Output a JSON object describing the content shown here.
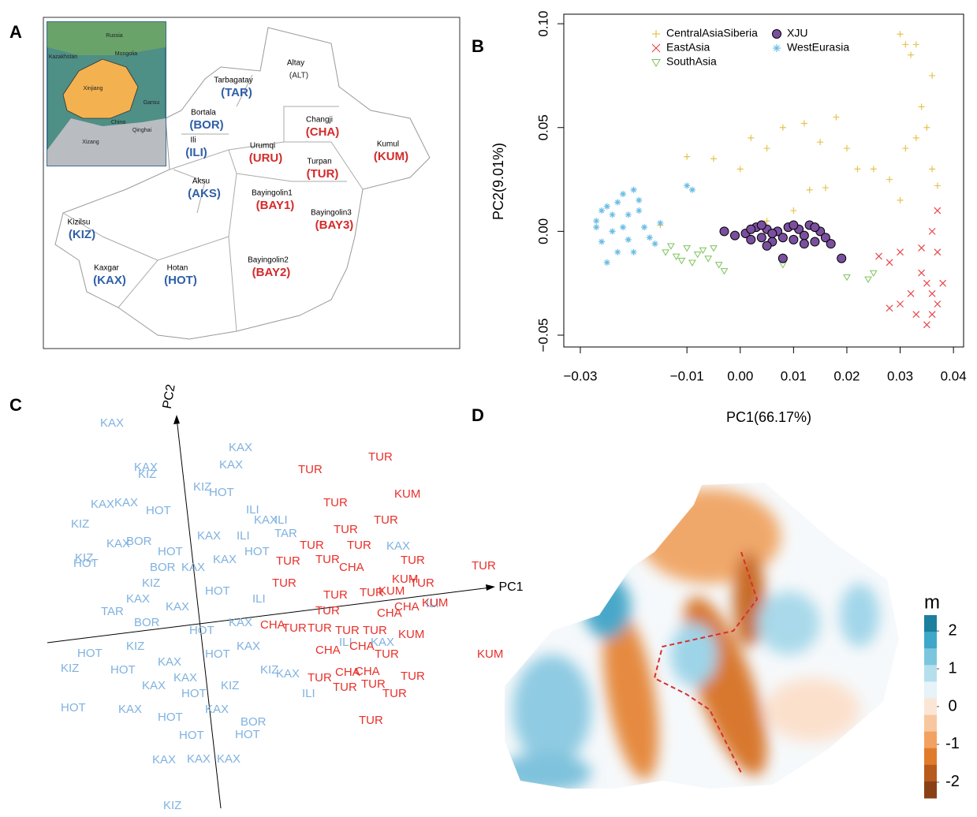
{
  "panel_labels": [
    "A",
    "B",
    "C",
    "D"
  ],
  "map": {
    "regions": [
      {
        "name": "Altay",
        "code": "(ALT)",
        "color": "#222222"
      },
      {
        "name": "Tarbagatay",
        "code": "(TAR)",
        "color": "#2e5fa8"
      },
      {
        "name": "Bortala",
        "code": "(BOR)",
        "color": "#2e5fa8"
      },
      {
        "name": "Ili",
        "code": "(ILI)",
        "color": "#2e5fa8"
      },
      {
        "name": "Changji",
        "code": "(CHA)",
        "color": "#d42a2a"
      },
      {
        "name": "Urumqi",
        "code": "(URU)",
        "color": "#d42a2a"
      },
      {
        "name": "Turpan",
        "code": "(TUR)",
        "color": "#d42a2a"
      },
      {
        "name": "Kumul",
        "code": "(KUM)",
        "color": "#d42a2a"
      },
      {
        "name": "Aksu",
        "code": "(AKS)",
        "color": "#2e5fa8"
      },
      {
        "name": "Bayingolin1",
        "code": "(BAY1)",
        "color": "#d42a2a"
      },
      {
        "name": "Bayingolin3",
        "code": "(BAY3)",
        "color": "#d42a2a"
      },
      {
        "name": "Kizilsu",
        "code": "(KIZ)",
        "color": "#2e5fa8"
      },
      {
        "name": "Kaxgar",
        "code": "(KAX)",
        "color": "#2e5fa8"
      },
      {
        "name": "Hotan",
        "code": "(HOT)",
        "color": "#2e5fa8"
      },
      {
        "name": "Bayingolin2",
        "code": "(BAY2)",
        "color": "#d42a2a"
      }
    ],
    "inset_labels": [
      "Russia",
      "Kazakhstan",
      "Mongolia",
      "Xinjiang",
      "China",
      "Qinghai",
      "Xizang",
      "Gansu"
    ]
  },
  "chart_data": [
    {
      "type": "scatter",
      "xlabel": "PC1(66.17%)",
      "ylabel": "PC2(9.01%)",
      "xlim": [
        -0.0331,
        0.0419
      ],
      "ylim": [
        -0.0557,
        0.1046
      ],
      "xticks": [
        {
          "value": -0.03,
          "label": "−0.03"
        },
        {
          "value": -0.01,
          "label": "−0.01"
        },
        {
          "value": 0,
          "label": "0.00"
        },
        0.01,
        0.02,
        0.03,
        0.04
      ],
      "yticks": [
        {
          "value": -0.05,
          "label": "−0.05"
        },
        {
          "value": 0,
          "label": "0.00"
        },
        0.05,
        {
          "value": 0.1,
          "label": "0.10"
        }
      ],
      "series": [
        {
          "name": "CentralAsiaSiberia",
          "color": "#e6c34f",
          "marker": "plus",
          "x": [
            -0.015,
            -0.01,
            -0.005,
            0.0,
            0.002,
            0.005,
            0.008,
            0.012,
            0.015,
            0.018,
            0.013,
            0.016,
            0.022,
            0.025,
            0.028,
            0.02,
            0.03,
            0.031,
            0.032,
            0.033,
            0.034,
            0.035,
            0.033,
            0.036,
            0.037,
            0.03,
            0.01,
            0.005,
            0.031,
            0.036
          ],
          "values": [
            0.003,
            0.036,
            0.035,
            0.03,
            0.045,
            0.04,
            0.05,
            0.052,
            0.043,
            0.055,
            0.02,
            0.021,
            0.03,
            0.03,
            0.025,
            0.04,
            0.095,
            0.09,
            0.085,
            0.09,
            0.06,
            0.05,
            0.045,
            0.03,
            0.022,
            0.015,
            0.01,
            0.005,
            0.04,
            0.075
          ]
        },
        {
          "name": "EastAsia",
          "color": "#e8464a",
          "marker": "cross",
          "x": [
            0.026,
            0.028,
            0.03,
            0.032,
            0.034,
            0.035,
            0.036,
            0.037,
            0.036,
            0.035,
            0.033,
            0.03,
            0.028,
            0.037,
            0.036,
            0.037,
            0.038,
            0.034
          ],
          "values": [
            -0.012,
            -0.015,
            -0.01,
            -0.03,
            -0.02,
            -0.025,
            -0.03,
            -0.035,
            -0.04,
            -0.045,
            -0.04,
            -0.035,
            -0.037,
            -0.01,
            0.0,
            0.01,
            -0.025,
            -0.008
          ]
        },
        {
          "name": "SouthAsia",
          "color": "#7cc35a",
          "marker": "triangle",
          "x": [
            -0.014,
            -0.012,
            -0.01,
            -0.008,
            -0.006,
            -0.004,
            -0.003,
            -0.011,
            -0.013,
            -0.007,
            0.008,
            0.02,
            0.024,
            0.025,
            -0.009,
            -0.005
          ],
          "values": [
            -0.01,
            -0.012,
            -0.008,
            -0.011,
            -0.013,
            -0.016,
            -0.019,
            -0.014,
            -0.007,
            -0.009,
            -0.016,
            -0.022,
            -0.023,
            -0.02,
            -0.015,
            -0.008
          ]
        },
        {
          "name": "XJU",
          "color": "#7b4fa0",
          "marker": "circle",
          "x": [
            -0.003,
            -0.001,
            0.001,
            0.002,
            0.003,
            0.004,
            0.005,
            0.006,
            0.007,
            0.008,
            0.009,
            0.01,
            0.011,
            0.012,
            0.013,
            0.014,
            0.015,
            0.016,
            0.017,
            0.019,
            0.008,
            0.005,
            0.002,
            0.01,
            0.012,
            0.004,
            0.006,
            0.014
          ],
          "values": [
            0.0,
            -0.002,
            -0.001,
            -0.004,
            0.002,
            -0.003,
            0.001,
            -0.005,
            0.0,
            -0.003,
            0.002,
            -0.004,
            0.001,
            -0.002,
            0.003,
            -0.005,
            0.0,
            -0.003,
            -0.006,
            -0.013,
            -0.013,
            -0.007,
            0.001,
            0.003,
            -0.006,
            0.003,
            -0.001,
            0.002
          ]
        },
        {
          "name": "WestEurasia",
          "color": "#6bbde3",
          "marker": "star",
          "x": [
            -0.027,
            -0.026,
            -0.025,
            -0.024,
            -0.023,
            -0.022,
            -0.021,
            -0.02,
            -0.019,
            -0.018,
            -0.017,
            -0.016,
            -0.025,
            -0.024,
            -0.026,
            -0.022,
            -0.021,
            -0.019,
            -0.023,
            -0.01,
            -0.009,
            -0.02,
            -0.027,
            -0.015
          ],
          "values": [
            0.005,
            -0.005,
            0.012,
            0.0,
            -0.01,
            0.018,
            0.008,
            0.02,
            0.01,
            0.002,
            -0.003,
            -0.006,
            -0.015,
            0.008,
            0.01,
            0.002,
            -0.004,
            0.015,
            0.014,
            0.022,
            0.02,
            -0.01,
            0.002,
            0.004
          ]
        }
      ]
    },
    {
      "type": "text_scatter",
      "xlabel": "PC1",
      "ylabel": "PC2",
      "xlim": [
        0,
        560
      ],
      "ylim": [
        0,
        520
      ],
      "series": [
        {
          "color": "#7fb2e0",
          "labels": [
            "KAX",
            "KAX",
            "KAX",
            "KIZ",
            "KAX",
            "KAX",
            "KAX",
            "HOT",
            "KIZ",
            "HOT",
            "ILI",
            "KAX",
            "ILI",
            "KIZ",
            "HOT",
            "KIZ",
            "KAX",
            "TAR",
            "BOR",
            "TAR",
            "HOT",
            "KIZ",
            "HOT",
            "KIZ",
            "KAX",
            "KAX",
            "KAX",
            "HOT",
            "HOT",
            "BOR",
            "ILI",
            "KAX",
            "ILI",
            "ILI",
            "KAX",
            "KAX",
            "HOT",
            "KAX",
            "KIZ",
            "HOT",
            "KAX",
            "BOR",
            "HOT",
            "KAX",
            "KIZ",
            "KAX",
            "HOT",
            "KAX",
            "ILI",
            "KAX",
            "HOT",
            "KIZ",
            "KAX",
            "HOT",
            "KAX",
            "BOR",
            "KAX",
            "HOT",
            "KAX",
            "KIZ",
            "KAX",
            "HOT",
            "KAX",
            "ILI"
          ],
          "x": [
            67,
            230,
            218,
            115,
            110,
            55,
            85,
            125,
            185,
            205,
            252,
            262,
            288,
            30,
            33,
            35,
            75,
            288,
            100,
            68,
            38,
            17,
            17,
            147,
            133,
            177,
            215,
            167,
            238,
            245,
            323,
            290,
            480,
            370,
            410,
            430,
            140,
            170,
            120,
            200,
            150,
            110,
            180,
            230,
            100,
            140,
            200,
            240,
            260,
            120,
            170,
            220,
            90,
            140,
            200,
            130,
            210,
            250,
            100,
            270,
            160,
            80,
            190,
            240
          ],
          "values": [
            493,
            462,
            440,
            428,
            437,
            390,
            392,
            382,
            412,
            405,
            383,
            370,
            370,
            365,
            315,
            322,
            340,
            353,
            343,
            254,
            201,
            182,
            132,
            8,
            66,
            67,
            67,
            97,
            98,
            114,
            150,
            175,
            264,
            215,
            215,
            337,
            330,
            310,
            290,
            280,
            260,
            240,
            230,
            240,
            210,
            190,
            200,
            210,
            270,
            160,
            150,
            160,
            130,
            120,
            130,
            310,
            320,
            330,
            270,
            180,
            170,
            180,
            350,
            350
          ]
        },
        {
          "color": "#e8302a",
          "labels": [
            "TUR",
            "TUR",
            "TUR",
            "KUM",
            "TUR",
            "TUR",
            "TUR",
            "TUR",
            "TUR",
            "KUM",
            "TUR",
            "KUM",
            "TUR",
            "TUR",
            "TUR",
            "CHA",
            "TUR",
            "TUR",
            "KUM",
            "TUR",
            "CHA",
            "CHA",
            "TUR",
            "TUR",
            "TUR",
            "KUM",
            "CHA",
            "TUR",
            "TUR",
            "CHA",
            "CHA",
            "TUR",
            "KUM",
            "TUR",
            "CHA",
            "CHA",
            "TUR",
            "TUR",
            "TUR",
            "TUR",
            "TUR"
          ],
          "x": [
            318,
            407,
            350,
            440,
            414,
            363,
            320,
            380,
            448,
            437,
            538,
            475,
            290,
            285,
            340,
            370,
            350,
            396,
            420,
            460,
            418,
            440,
            340,
            365,
            400,
            445,
            270,
            298,
            330,
            340,
            383,
            415,
            545,
            330,
            365,
            390,
            362,
            398,
            448,
            425,
            395
          ],
          "values": [
            434,
            450,
            392,
            403,
            370,
            358,
            338,
            338,
            319,
            295,
            312,
            265,
            318,
            290,
            320,
            310,
            275,
            278,
            280,
            290,
            252,
            260,
            255,
            230,
            230,
            225,
            237,
            233,
            233,
            205,
            210,
            200,
            200,
            170,
            177,
            178,
            158,
            162,
            172,
            150,
            116
          ]
        }
      ]
    },
    {
      "type": "colorbar",
      "title": "m",
      "ylim": [
        -2.42,
        2.42
      ],
      "yticks": [
        -2,
        -1,
        0,
        1,
        2
      ]
    }
  ]
}
